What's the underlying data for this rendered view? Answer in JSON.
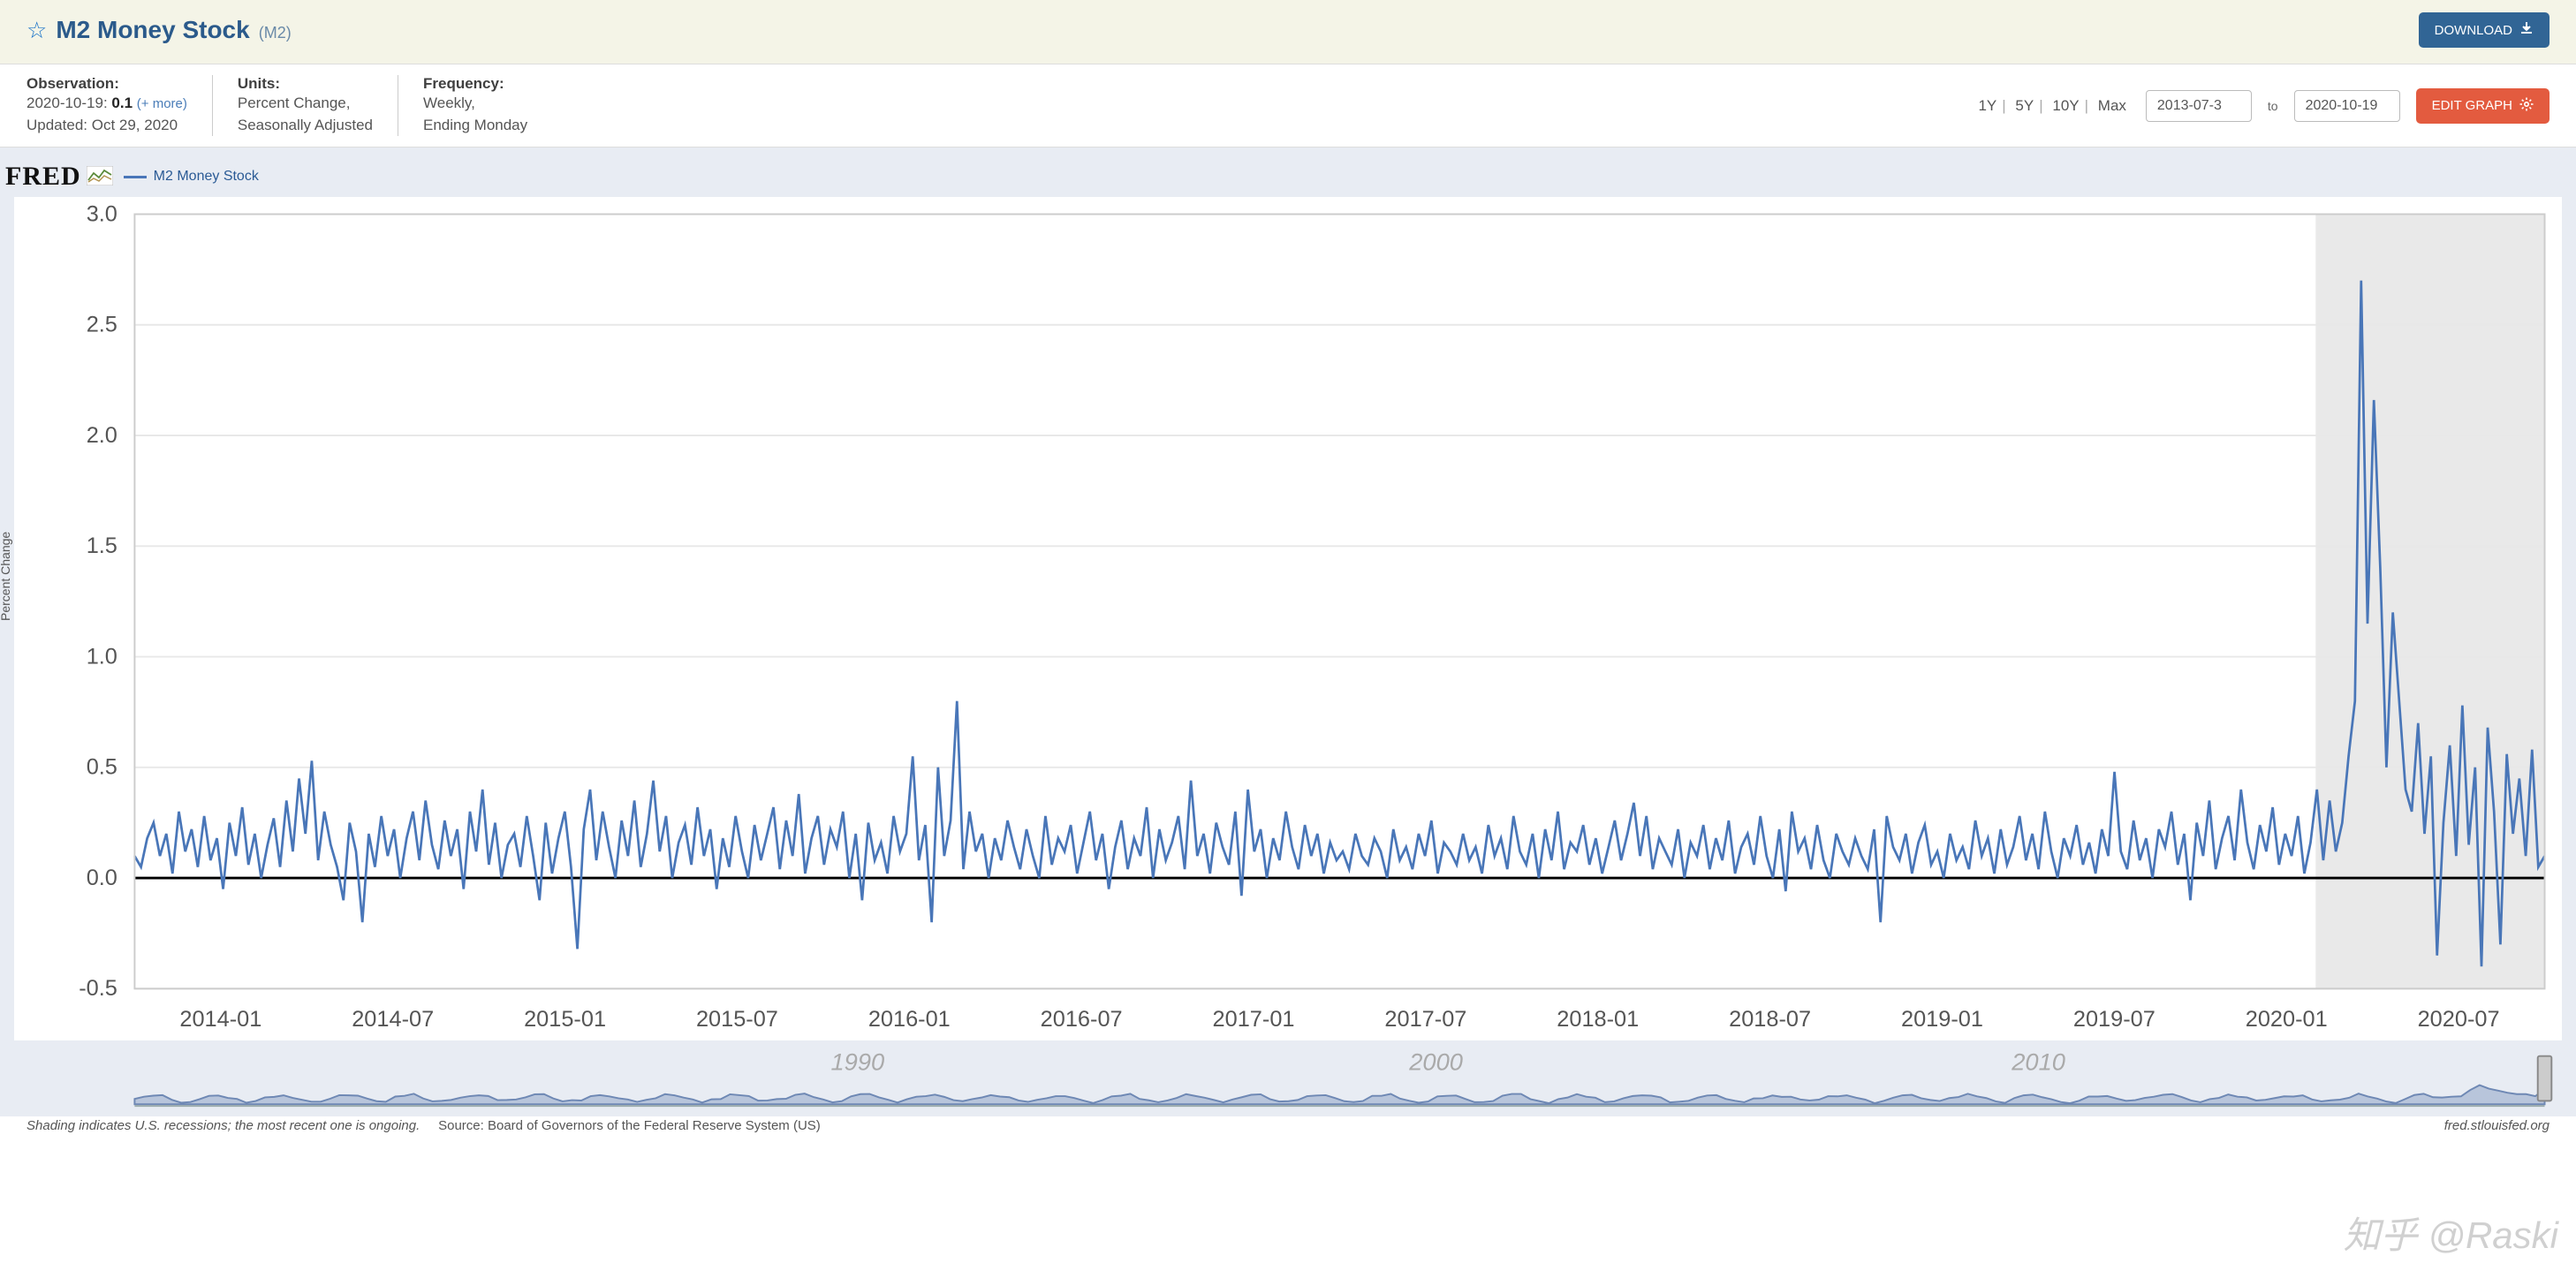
{
  "title": {
    "name": "M2 Money Stock",
    "code": "(M2)"
  },
  "buttons": {
    "download": "DOWNLOAD",
    "edit": "EDIT GRAPH"
  },
  "observation": {
    "label": "Observation:",
    "date": "2020-10-19:",
    "value": "0.1",
    "more": "(+ more)",
    "updated": "Updated: Oct 29, 2020"
  },
  "units": {
    "label": "Units:",
    "line1": "Percent Change,",
    "line2": "Seasonally Adjusted"
  },
  "frequency": {
    "label": "Frequency:",
    "line1": "Weekly,",
    "line2": "Ending Monday"
  },
  "range": {
    "options": [
      "1Y",
      "5Y",
      "10Y",
      "Max"
    ],
    "from": "2013-07-3",
    "to_label": "to",
    "to": "2020-10-19"
  },
  "legend": {
    "label": "M2 Money Stock"
  },
  "chart": {
    "type": "line",
    "ylabel": "Percent Change",
    "ylim": [
      -0.5,
      3.0
    ],
    "ytick_step": 0.5,
    "xlim": [
      "2013-07-03",
      "2020-10-19"
    ],
    "xticks": [
      "2014-01",
      "2014-07",
      "2015-01",
      "2015-07",
      "2016-01",
      "2016-07",
      "2017-01",
      "2017-07",
      "2018-01",
      "2018-07",
      "2019-01",
      "2019-07",
      "2020-01",
      "2020-07"
    ],
    "background_color": "#ffffff",
    "panel_background": "#e8ecf3",
    "grid_color": "#e8e8e8",
    "zero_line_color": "#000000",
    "series_color": "#4976b8",
    "series_width": 1.4,
    "recession_band": {
      "from": "2020-02-15",
      "to": "2020-10-19",
      "color": "#e9e9e9"
    },
    "values": [
      0.1,
      0.05,
      0.18,
      0.25,
      0.1,
      0.2,
      0.02,
      0.3,
      0.12,
      0.22,
      0.05,
      0.28,
      0.08,
      0.18,
      -0.05,
      0.25,
      0.1,
      0.32,
      0.06,
      0.2,
      0.0,
      0.15,
      0.27,
      0.05,
      0.35,
      0.12,
      0.45,
      0.2,
      0.53,
      0.08,
      0.3,
      0.15,
      0.05,
      -0.1,
      0.25,
      0.12,
      -0.2,
      0.2,
      0.05,
      0.28,
      0.1,
      0.22,
      0.0,
      0.18,
      0.3,
      0.08,
      0.35,
      0.15,
      0.04,
      0.26,
      0.1,
      0.22,
      -0.05,
      0.3,
      0.12,
      0.4,
      0.06,
      0.25,
      0.0,
      0.15,
      0.2,
      0.05,
      0.28,
      0.1,
      -0.1,
      0.25,
      0.02,
      0.18,
      0.3,
      0.05,
      -0.32,
      0.22,
      0.4,
      0.08,
      0.3,
      0.14,
      0.0,
      0.26,
      0.1,
      0.35,
      0.05,
      0.2,
      0.44,
      0.12,
      0.28,
      0.0,
      0.16,
      0.24,
      0.06,
      0.32,
      0.1,
      0.22,
      -0.05,
      0.18,
      0.05,
      0.28,
      0.12,
      0.0,
      0.24,
      0.08,
      0.2,
      0.32,
      0.04,
      0.26,
      0.1,
      0.38,
      0.02,
      0.18,
      0.28,
      0.06,
      0.22,
      0.14,
      0.3,
      0.0,
      0.2,
      -0.1,
      0.25,
      0.08,
      0.16,
      0.02,
      0.28,
      0.12,
      0.2,
      0.55,
      0.08,
      0.24,
      -0.2,
      0.5,
      0.1,
      0.26,
      0.8,
      0.04,
      0.3,
      0.12,
      0.2,
      0.0,
      0.18,
      0.08,
      0.26,
      0.14,
      0.04,
      0.22,
      0.1,
      0.0,
      0.28,
      0.06,
      0.18,
      0.12,
      0.24,
      0.02,
      0.16,
      0.3,
      0.08,
      0.2,
      -0.05,
      0.14,
      0.26,
      0.04,
      0.18,
      0.1,
      0.32,
      0.0,
      0.22,
      0.08,
      0.16,
      0.28,
      0.04,
      0.44,
      0.1,
      0.2,
      0.02,
      0.25,
      0.14,
      0.06,
      0.3,
      -0.08,
      0.4,
      0.12,
      0.22,
      0.0,
      0.18,
      0.08,
      0.3,
      0.14,
      0.04,
      0.24,
      0.1,
      0.2,
      0.02,
      0.16,
      0.08,
      0.12,
      0.04,
      0.2,
      0.1,
      0.06,
      0.18,
      0.12,
      0.0,
      0.22,
      0.08,
      0.14,
      0.04,
      0.2,
      0.1,
      0.26,
      0.02,
      0.16,
      0.12,
      0.06,
      0.2,
      0.08,
      0.14,
      0.02,
      0.24,
      0.1,
      0.18,
      0.04,
      0.28,
      0.12,
      0.06,
      0.2,
      0.0,
      0.22,
      0.08,
      0.3,
      0.04,
      0.16,
      0.12,
      0.24,
      0.06,
      0.18,
      0.02,
      0.14,
      0.26,
      0.08,
      0.2,
      0.34,
      0.1,
      0.28,
      0.04,
      0.18,
      0.12,
      0.06,
      0.22,
      0.0,
      0.16,
      0.1,
      0.24,
      0.04,
      0.18,
      0.08,
      0.26,
      0.02,
      0.14,
      0.2,
      0.06,
      0.28,
      0.1,
      0.0,
      0.22,
      -0.06,
      0.3,
      0.12,
      0.18,
      0.04,
      0.24,
      0.08,
      0.0,
      0.2,
      0.12,
      0.06,
      0.18,
      0.1,
      0.04,
      0.22,
      -0.2,
      0.28,
      0.14,
      0.08,
      0.2,
      0.02,
      0.16,
      0.24,
      0.06,
      0.12,
      0.0,
      0.2,
      0.08,
      0.14,
      0.04,
      0.26,
      0.1,
      0.18,
      0.02,
      0.22,
      0.06,
      0.14,
      0.28,
      0.08,
      0.2,
      0.04,
      0.3,
      0.12,
      0.0,
      0.18,
      0.1,
      0.24,
      0.06,
      0.16,
      0.02,
      0.22,
      0.1,
      0.48,
      0.12,
      0.04,
      0.26,
      0.08,
      0.18,
      0.0,
      0.22,
      0.14,
      0.3,
      0.06,
      0.2,
      -0.1,
      0.25,
      0.1,
      0.35,
      0.04,
      0.18,
      0.28,
      0.08,
      0.4,
      0.16,
      0.04,
      0.24,
      0.12,
      0.32,
      0.06,
      0.2,
      0.1,
      0.28,
      0.02,
      0.16,
      0.4,
      0.08,
      0.35,
      0.12,
      0.25,
      0.55,
      0.8,
      2.7,
      1.15,
      2.16,
      1.4,
      0.5,
      1.2,
      0.8,
      0.4,
      0.3,
      0.7,
      0.2,
      0.55,
      -0.35,
      0.25,
      0.6,
      0.1,
      0.78,
      0.15,
      0.5,
      -0.4,
      0.68,
      0.3,
      -0.3,
      0.56,
      0.2,
      0.45,
      0.1,
      0.58,
      0.05,
      0.1
    ]
  },
  "mini": {
    "decades": [
      "1990",
      "2000",
      "2010"
    ],
    "area_fill": "#b8c5db",
    "area_stroke": "#6e88b4"
  },
  "footer": {
    "shade_note": "Shading indicates U.S. recessions; the most recent one is ongoing.",
    "source_label": "Source:",
    "source": "Board of Governors of the Federal Reserve System (US)",
    "site": "fred.stlouisfed.org"
  },
  "watermark": "知乎 @Raski",
  "colors": {
    "title_bg": "#f4f4e7",
    "title_color": "#2b5a8b",
    "download_btn": "#316595",
    "edit_btn": "#e35b3f"
  }
}
